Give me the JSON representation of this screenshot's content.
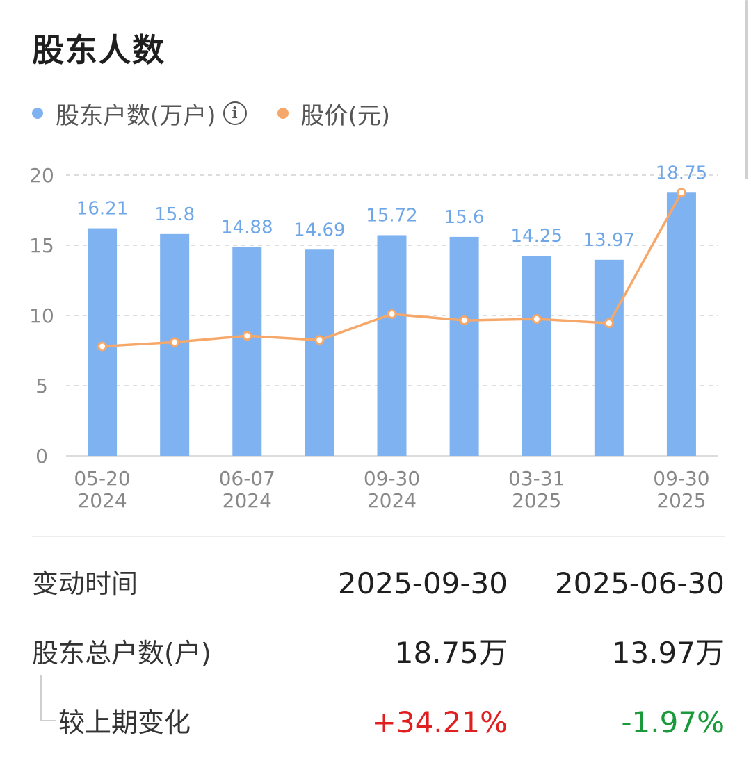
{
  "title": "股东人数",
  "legend": {
    "holders": {
      "label": "股东户数(万户)",
      "color": "#7fb2f0",
      "info_icon": "info-icon"
    },
    "price": {
      "label": "股价(元)",
      "color": "#f5a86a"
    }
  },
  "chart_data": {
    "type": "bar",
    "x": [
      "05-20 2024",
      "",
      "06-07 2024",
      "",
      "09-30 2024",
      "",
      "03-31 2025",
      "",
      "09-30 2025"
    ],
    "x_tick_labels": [
      {
        "line1": "05-20",
        "line2": "2024"
      },
      {
        "line1": "06-07",
        "line2": "2024"
      },
      {
        "line1": "09-30",
        "line2": "2024"
      },
      {
        "line1": "03-31",
        "line2": "2025"
      },
      {
        "line1": "09-30",
        "line2": "2025"
      }
    ],
    "x_tick_indices": [
      0,
      2,
      4,
      6,
      8
    ],
    "ylim": [
      0,
      20
    ],
    "yticks": [
      0,
      5,
      10,
      15,
      20
    ],
    "grid": true,
    "series": [
      {
        "name": "股东户数(万户)",
        "type": "bar",
        "color": "#7fb2f0",
        "values": [
          16.21,
          15.8,
          14.88,
          14.69,
          15.72,
          15.6,
          14.25,
          13.97,
          18.75
        ],
        "labels": [
          "16.21",
          "15.8",
          "14.88",
          "14.69",
          "15.72",
          "15.6",
          "14.25",
          "13.97",
          "18.75"
        ]
      },
      {
        "name": "股价(元)",
        "type": "line",
        "color": "#f5a86a",
        "values": [
          7.8,
          8.1,
          8.55,
          8.25,
          10.1,
          9.65,
          9.75,
          9.45,
          18.75
        ]
      }
    ]
  },
  "table": {
    "time_label": "变动时间",
    "time_values": [
      "2025-09-30",
      "2025-06-30"
    ],
    "total_label": "股东总户数(户)",
    "total_values": [
      "18.75万",
      "13.97万"
    ],
    "change_label": "较上期变化",
    "change_values": [
      "+34.21%",
      "-1.97%"
    ]
  }
}
